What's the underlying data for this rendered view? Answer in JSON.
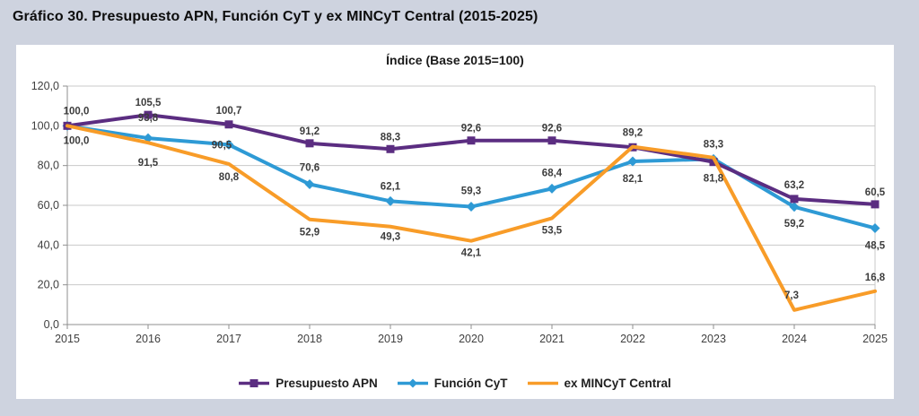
{
  "page": {
    "heading": "Gráfico 30. Presupuesto APN, Función CyT y ex MINCyT Central (2015-2025)"
  },
  "chart_data": {
    "type": "line",
    "title": "Índice (Base 2015=100)",
    "categories": [
      "2015",
      "2016",
      "2017",
      "2018",
      "2019",
      "2020",
      "2021",
      "2022",
      "2023",
      "2024",
      "2025"
    ],
    "ylim": [
      0,
      120
    ],
    "ytick_step": 20,
    "ytick_labels": [
      "0,0",
      "20,0",
      "40,0",
      "60,0",
      "80,0",
      "100,0",
      "120,0"
    ],
    "grid": true,
    "legend_position": "bottom",
    "decimal_separator": ",",
    "series": [
      {
        "name": "Presupuesto APN",
        "color": "#5b2d81",
        "marker": "square",
        "values": [
          100.0,
          105.5,
          100.7,
          91.2,
          88.3,
          92.6,
          92.6,
          89.2,
          81.8,
          63.2,
          60.5
        ],
        "labels": [
          {
            "i": 0,
            "text": "100,0",
            "side": "above",
            "dx": 10,
            "dy": -3
          },
          {
            "i": 1,
            "text": "105,5",
            "side": "above"
          },
          {
            "i": 2,
            "text": "100,7",
            "side": "above",
            "dy": -2
          },
          {
            "i": 3,
            "text": "91,2",
            "side": "above"
          },
          {
            "i": 4,
            "text": "88,3",
            "side": "above"
          },
          {
            "i": 5,
            "text": "92,6",
            "side": "above"
          },
          {
            "i": 6,
            "text": "92,6",
            "side": "above"
          },
          {
            "i": 7,
            "text": "89,2",
            "side": "above",
            "dy": -3
          },
          {
            "i": 8,
            "text": "81,8",
            "side": "below",
            "dy": 2
          },
          {
            "i": 9,
            "text": "63,2",
            "side": "above",
            "dy": -2
          },
          {
            "i": 10,
            "text": "60,5",
            "side": "above"
          }
        ]
      },
      {
        "name": "Función CyT",
        "color": "#2e9ad5",
        "marker": "diamond",
        "values": [
          100.0,
          93.8,
          90.5,
          70.6,
          62.1,
          59.3,
          68.4,
          82.1,
          83.3,
          59.2,
          48.5
        ],
        "labels": [
          {
            "i": 1,
            "text": "93,8",
            "side": "above",
            "dy": -9
          },
          {
            "i": 2,
            "text": "90,5",
            "side": "left"
          },
          {
            "i": 3,
            "text": "70,6",
            "side": "above",
            "dy": -5
          },
          {
            "i": 4,
            "text": "62,1",
            "side": "above",
            "dy": -3
          },
          {
            "i": 5,
            "text": "59,3",
            "side": "above",
            "dy": -4
          },
          {
            "i": 6,
            "text": "68,4",
            "side": "above",
            "dy": -4
          },
          {
            "i": 7,
            "text": "82,1",
            "side": "below",
            "dy": 3
          },
          {
            "i": 8,
            "text": "83,3",
            "side": "above",
            "dy": -3
          },
          {
            "i": 9,
            "text": "59,2",
            "side": "below",
            "dy": 2
          },
          {
            "i": 10,
            "text": "48,5",
            "side": "below",
            "dy": 3
          }
        ]
      },
      {
        "name": "ex MINCyT Central",
        "color": "#f89c28",
        "marker": "none",
        "values": [
          100.0,
          91.5,
          80.8,
          52.9,
          49.3,
          42.1,
          53.5,
          89.5,
          84.0,
          7.3,
          16.8
        ],
        "labels": [
          {
            "i": 0,
            "text": "100,0",
            "side": "below",
            "dx": 10
          },
          {
            "i": 1,
            "text": "91,5",
            "side": "below",
            "dy": 6
          },
          {
            "i": 2,
            "text": "80,8",
            "side": "below",
            "dy": -2
          },
          {
            "i": 3,
            "text": "52,9",
            "side": "below",
            "dy": -2
          },
          {
            "i": 4,
            "text": "49,3",
            "side": "below",
            "dy": -5
          },
          {
            "i": 5,
            "text": "42,1",
            "side": "below",
            "dy": -3
          },
          {
            "i": 6,
            "text": "53,5",
            "side": "below",
            "dy": -3
          },
          {
            "i": 9,
            "text": "7,3",
            "side": "above",
            "dx": -3,
            "dy": -3
          },
          {
            "i": 10,
            "text": "16,8",
            "side": "above",
            "dy": -2
          }
        ]
      }
    ]
  }
}
